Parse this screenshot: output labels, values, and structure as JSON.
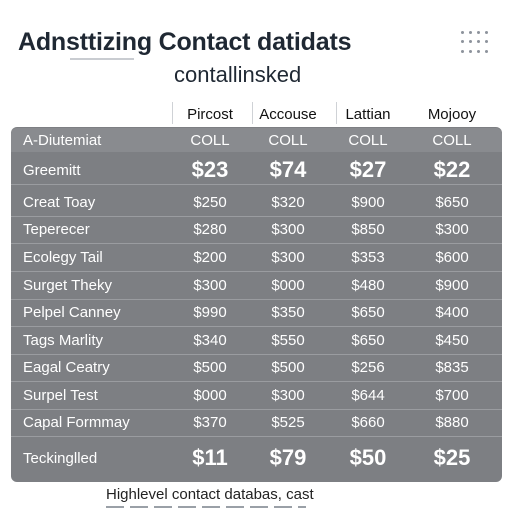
{
  "title": {
    "line1": "Adnsttizing Contact datidats",
    "line2": "contallinsked"
  },
  "columns": [
    "Pircost",
    "Accouse",
    "Lattian",
    "Mojooy"
  ],
  "table": {
    "header": {
      "label": "A-Diutemiat",
      "values": [
        "COLL",
        "COLL",
        "COLL",
        "COLL"
      ]
    },
    "rows": [
      {
        "label": "Greemitt",
        "values": [
          "$23",
          "$74",
          "$27",
          "$22"
        ],
        "big": true
      },
      {
        "label": "Creat Toay",
        "values": [
          "$250",
          "$320",
          "$900",
          "$650"
        ]
      },
      {
        "label": "Teperecer",
        "values": [
          "$280",
          "$300",
          "$850",
          "$300"
        ]
      },
      {
        "label": "Ecolegy Tail",
        "values": [
          "$200",
          "$300",
          "$353",
          "$600"
        ]
      },
      {
        "label": "Surget Theky",
        "values": [
          "$300",
          "$000",
          "$480",
          "$900"
        ]
      },
      {
        "label": "Pelpel Canney",
        "values": [
          "$990",
          "$350",
          "$650",
          "$400"
        ]
      },
      {
        "label": "Tags Marlity",
        "values": [
          "$340",
          "$550",
          "$650",
          "$450"
        ]
      },
      {
        "label": "Eagal Ceatry",
        "values": [
          "$500",
          "$500",
          "$256",
          "$835"
        ]
      },
      {
        "label": "Surpel Test",
        "values": [
          "$000",
          "$300",
          "$644",
          "$700"
        ]
      },
      {
        "label": "Capal Formmay",
        "values": [
          "$370",
          "$525",
          "$660",
          "$880"
        ]
      },
      {
        "label": "Teckinglled",
        "values": [
          "$11",
          "$79",
          "$50",
          "$25"
        ],
        "big": true
      }
    ]
  },
  "footer": "Highlevel contact databas, cast",
  "colors": {
    "table_bg": "#7d7f83",
    "title": "#1f2833"
  },
  "icons": [
    "dot-grid-icon"
  ]
}
